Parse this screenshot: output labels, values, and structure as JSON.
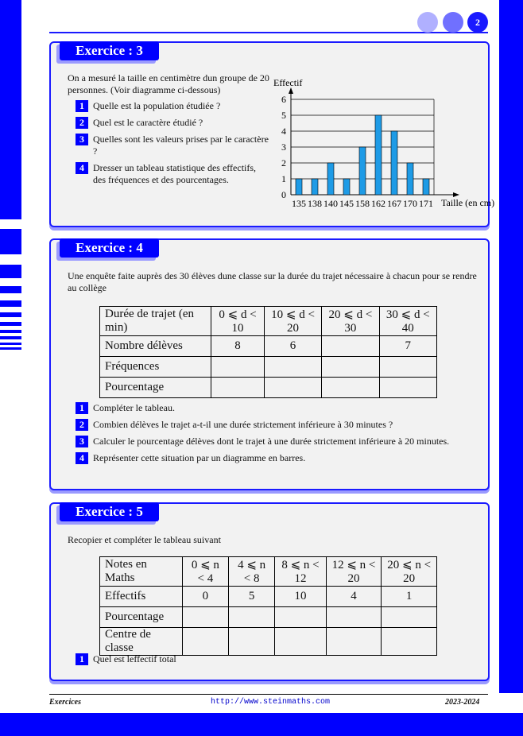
{
  "header": {
    "page_number": "2"
  },
  "exercises": [
    {
      "title": "Exercice : 3",
      "intro": "On a mesuré la taille en centimètre dun groupe de 20 personnes. (Voir diagramme ci-dessous)",
      "questions": [
        {
          "number": "1",
          "text": "Quelle est la population étudiée ?"
        },
        {
          "number": "2",
          "text": "Quel est le caractère étudié ?"
        },
        {
          "number": "3",
          "text": "Quelles sont les valeurs prises par le caractère ?"
        },
        {
          "number": "4",
          "text": "Dresser un tableau statistique des effectifs, des fréquences et des pourcentages."
        }
      ],
      "chart": {
        "type": "bar",
        "y_label": "Effectif",
        "x_label": "Taille (en cm)",
        "categories": [
          135,
          138,
          140,
          145,
          158,
          162,
          167,
          170,
          171
        ],
        "values": [
          1,
          1,
          2,
          1,
          3,
          5,
          4,
          2,
          1
        ],
        "color": "#1e9be6",
        "ylim": [
          0,
          6
        ],
        "yticks": [
          0,
          1,
          2,
          3,
          4,
          5,
          6
        ],
        "grid": true
      }
    },
    {
      "title": "Exercice : 4",
      "intro": "Une enquête faite auprès des 30 élèves dune classe sur la durée du trajet nécessaire à chacun pour se rendre au collège",
      "table": {
        "header": [
          "Durée de trajet (en min)",
          "0 ⩽ d < 10",
          "10 ⩽ d < 20",
          "20 ⩽ d < 30",
          "30 ⩽ d < 40"
        ],
        "rows": [
          [
            "Nombre délèves",
            8,
            6,
            null,
            7
          ],
          [
            "Fréquences",
            null,
            null,
            null,
            null
          ],
          [
            "Pourcentage",
            null,
            null,
            null,
            null
          ]
        ]
      },
      "questions": [
        {
          "number": "1",
          "text": "Compléter le tableau."
        },
        {
          "number": "2",
          "text": "Combien délèves le trajet a-t-il une durée strictement inférieure à 30 minutes ?"
        },
        {
          "number": "3",
          "text": "Calculer le pourcentage délèves dont le trajet à une durée strictement inférieure à 20 minutes."
        },
        {
          "number": "4",
          "text": "Représenter cette situation par un diagramme en barres."
        }
      ]
    },
    {
      "title": "Exercice : 5",
      "intro": "Recopier et compléter le tableau suivant",
      "table": {
        "header": [
          "Notes en Maths",
          "0 ⩽ n < 4",
          "4 ⩽ n < 8",
          "8 ⩽ n < 12",
          "12 ⩽ n < 20",
          "20 ⩽ n < 20"
        ],
        "rows": [
          [
            "Effectifs",
            0,
            5,
            10,
            4,
            1
          ],
          [
            "Pourcentage",
            null,
            null,
            null,
            null,
            null
          ],
          [
            "Centre de classe",
            null,
            null,
            null,
            null,
            null
          ]
        ]
      },
      "questions": [
        {
          "number": "1",
          "text": "Quel est leffectif total"
        }
      ]
    }
  ],
  "footer": {
    "left": "Exercices",
    "center": "http://www.steinmaths.com",
    "right": "2023-2024"
  }
}
